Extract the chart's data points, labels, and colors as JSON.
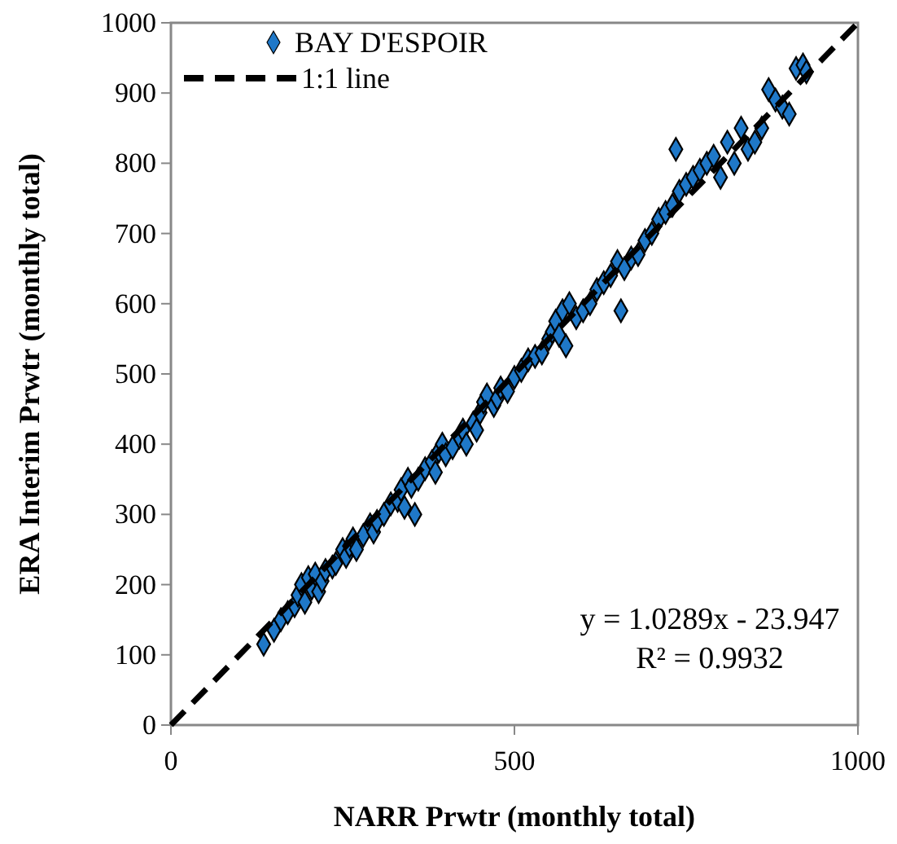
{
  "chart_data": {
    "type": "scatter",
    "xlabel": "NARR Prwtr (monthly total)",
    "ylabel": "ERA Interim Prwtr  (monthly total)",
    "xlim": [
      0,
      1000
    ],
    "ylim": [
      0,
      1000
    ],
    "xticks": [
      0,
      500,
      1000
    ],
    "yticks": [
      0,
      100,
      200,
      300,
      400,
      500,
      600,
      700,
      800,
      900,
      1000
    ],
    "grid": false,
    "legend": "top left",
    "annotations": [
      "y = 1.0289x - 23.947",
      "R² = 0.9932"
    ],
    "series": [
      {
        "name": "BAY D'ESPOIR",
        "color": "#1f78c8",
        "marker": "diamond",
        "x": [
          135,
          150,
          160,
          170,
          180,
          185,
          190,
          195,
          200,
          205,
          210,
          215,
          220,
          225,
          235,
          240,
          250,
          255,
          260,
          265,
          270,
          280,
          290,
          295,
          300,
          310,
          320,
          330,
          335,
          340,
          345,
          350,
          355,
          360,
          370,
          380,
          385,
          390,
          395,
          400,
          410,
          420,
          425,
          430,
          440,
          445,
          450,
          455,
          460,
          470,
          475,
          480,
          490,
          500,
          510,
          520,
          530,
          540,
          550,
          555,
          560,
          565,
          570,
          575,
          580,
          590,
          600,
          610,
          620,
          630,
          640,
          650,
          655,
          660,
          670,
          680,
          690,
          700,
          710,
          720,
          730,
          735,
          740,
          750,
          760,
          770,
          780,
          790,
          800,
          810,
          820,
          830,
          840,
          850,
          860,
          870,
          880,
          890,
          900,
          910,
          920,
          925
        ],
        "values": [
          115,
          135,
          150,
          160,
          170,
          185,
          200,
          175,
          210,
          195,
          215,
          190,
          205,
          220,
          225,
          230,
          250,
          240,
          255,
          265,
          250,
          270,
          285,
          275,
          290,
          300,
          315,
          320,
          335,
          310,
          350,
          340,
          300,
          350,
          365,
          375,
          360,
          390,
          400,
          385,
          395,
          410,
          420,
          400,
          430,
          420,
          445,
          460,
          470,
          455,
          465,
          480,
          475,
          495,
          505,
          520,
          525,
          530,
          550,
          560,
          575,
          555,
          590,
          540,
          600,
          580,
          590,
          600,
          620,
          630,
          640,
          660,
          590,
          650,
          665,
          670,
          690,
          700,
          720,
          730,
          740,
          820,
          760,
          770,
          780,
          790,
          800,
          810,
          780,
          830,
          800,
          850,
          820,
          830,
          850,
          905,
          890,
          880,
          870,
          935,
          940,
          930
        ]
      },
      {
        "name": "1:1 line",
        "type": "line",
        "color": "#000000",
        "line_style": "dashed",
        "marker": "none",
        "x": [
          0,
          1000
        ],
        "values": [
          0,
          1000
        ]
      }
    ]
  }
}
